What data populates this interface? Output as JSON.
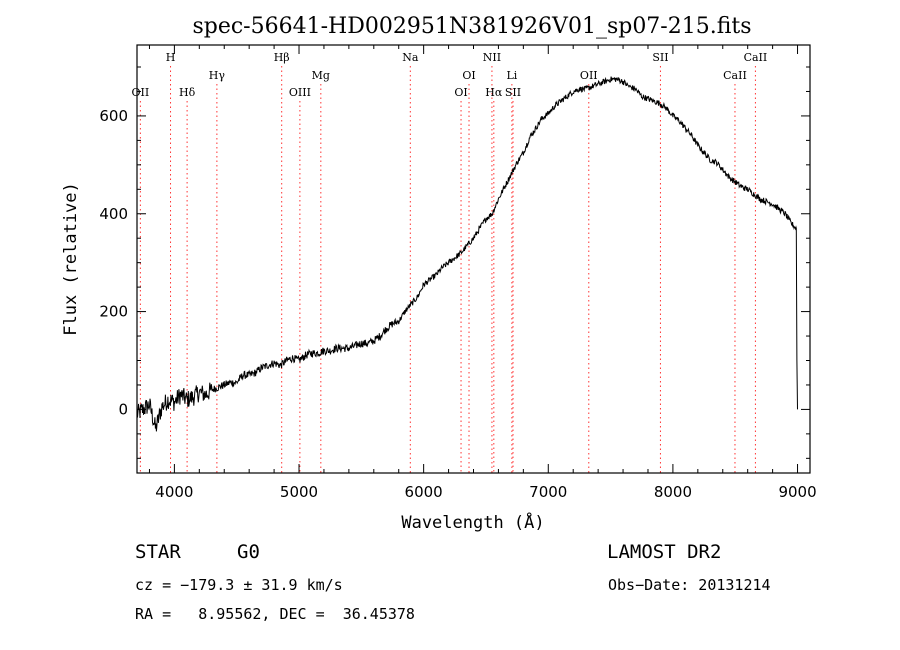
{
  "chart_data": {
    "type": "line",
    "title": "spec-56641-HD002951N381926V01_sp07-215.fits",
    "xlabel": "Wavelength (Å)",
    "ylabel": "Flux (relative)",
    "xlim": [
      3700,
      9100
    ],
    "ylim": [
      -130,
      745
    ],
    "x_ticks": [
      4000,
      5000,
      6000,
      7000,
      8000,
      9000
    ],
    "y_ticks": [
      0,
      200,
      400,
      600
    ],
    "grid": false,
    "line_color": "#000000",
    "marker_color": "#ff3333",
    "series": [
      {
        "x": [
          3700,
          3750,
          3800,
          3850,
          3900,
          3950,
          4000,
          4050,
          4100,
          4150,
          4200,
          4250,
          4300,
          4350,
          4400,
          4450,
          4500,
          4550,
          4600,
          4650,
          4700,
          4750,
          4800,
          4850,
          4900,
          4950,
          5000,
          5050,
          5100,
          5150,
          5200,
          5250,
          5300,
          5350,
          5400,
          5450,
          5500,
          5550,
          5600,
          5650,
          5700,
          5750,
          5800,
          5850,
          5900,
          5950,
          6000,
          6050,
          6100,
          6150,
          6200,
          6250,
          6300,
          6350,
          6400,
          6450,
          6500,
          6550,
          6600,
          6650,
          6700,
          6750,
          6800,
          6850,
          6900,
          6950,
          7000,
          7050,
          7100,
          7150,
          7200,
          7250,
          7300,
          7350,
          7400,
          7450,
          7500,
          7550,
          7600,
          7650,
          7700,
          7750,
          7800,
          7850,
          7900,
          7950,
          8000,
          8050,
          8100,
          8150,
          8200,
          8250,
          8300,
          8350,
          8400,
          8450,
          8500,
          8550,
          8600,
          8650,
          8700,
          8750,
          8800,
          8850,
          8900,
          8950,
          8990,
          8995,
          9000
        ],
        "y": [
          -10,
          0,
          10,
          -40,
          5,
          20,
          15,
          30,
          20,
          25,
          35,
          30,
          40,
          45,
          50,
          55,
          55,
          70,
          70,
          75,
          85,
          90,
          95,
          90,
          100,
          105,
          100,
          110,
          115,
          115,
          120,
          120,
          125,
          125,
          125,
          130,
          135,
          135,
          140,
          150,
          165,
          175,
          180,
          200,
          215,
          230,
          255,
          265,
          275,
          290,
          300,
          310,
          320,
          335,
          350,
          370,
          390,
          400,
          430,
          455,
          480,
          505,
          525,
          555,
          575,
          595,
          605,
          620,
          630,
          640,
          650,
          655,
          655,
          660,
          665,
          670,
          675,
          675,
          670,
          660,
          655,
          640,
          635,
          630,
          625,
          615,
          600,
          590,
          575,
          560,
          540,
          525,
          510,
          505,
          490,
          475,
          465,
          455,
          450,
          440,
          430,
          425,
          420,
          410,
          400,
          380,
          370,
          100,
          0
        ]
      }
    ],
    "lines": [
      {
        "label": "OII",
        "x": 3727,
        "row": 3
      },
      {
        "label": "H",
        "x": 3969,
        "row": 1
      },
      {
        "label": "Hδ",
        "x": 4102,
        "row": 3
      },
      {
        "label": "Hγ",
        "x": 4341,
        "row": 2
      },
      {
        "label": "Hβ",
        "x": 4861,
        "row": 1
      },
      {
        "label": "OIII",
        "x": 5007,
        "row": 3
      },
      {
        "label": "Mg",
        "x": 5175,
        "row": 2
      },
      {
        "label": "Na",
        "x": 5893,
        "row": 1
      },
      {
        "label": "OI",
        "x": 6300,
        "row": 3
      },
      {
        "label": "OI",
        "x": 6364,
        "row": 2
      },
      {
        "label": "NII",
        "x": 6548,
        "row": 1
      },
      {
        "label": "Hα",
        "x": 6563,
        "row": 3
      },
      {
        "label": "Li",
        "x": 6708,
        "row": 2
      },
      {
        "label": "SII",
        "x": 6717,
        "row": 3
      },
      {
        "label": "OII",
        "x": 7325,
        "row": 2
      },
      {
        "label": "SII",
        "x": 7900,
        "row": 1
      },
      {
        "label": "CaII",
        "x": 8498,
        "row": 2
      },
      {
        "label": "CaII",
        "x": 8662,
        "row": 1
      }
    ]
  },
  "info": {
    "object_type": "STAR",
    "subclass": "G0",
    "survey": "LAMOST DR2",
    "redshift": "cz = −179.3 ± 31.9 km/s",
    "obs_date": "Obs−Date: 20131214",
    "coords": "RA =   8.95562, DEC =  36.45378"
  }
}
